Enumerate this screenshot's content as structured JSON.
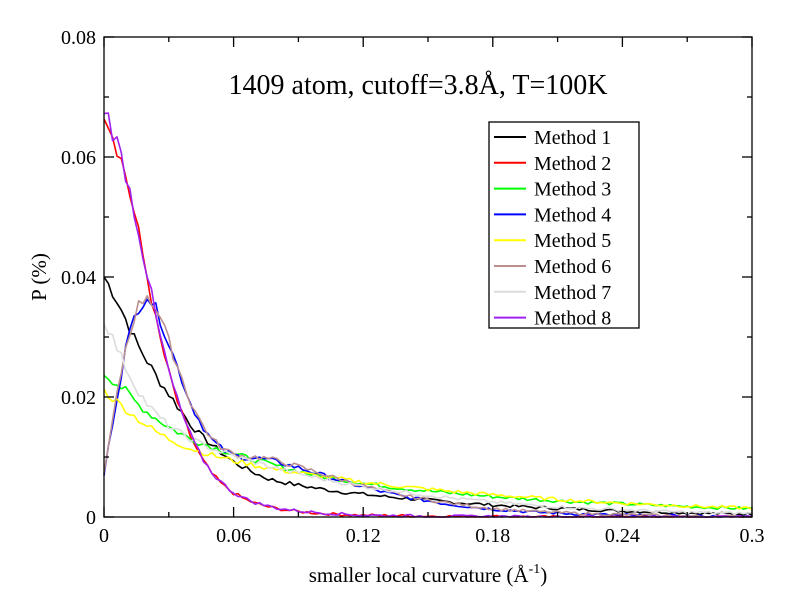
{
  "chart_data": {
    "type": "line",
    "title": "1409 atom, cutoff=3.8Å, T=100K",
    "xlabel": "smaller local curvature (Å",
    "xlabel_sup": "-1",
    "xlabel_suffix": ")",
    "ylabel": "P (%)",
    "xlim": [
      0,
      0.3
    ],
    "ylim": [
      0,
      0.08
    ],
    "xticks": [
      0,
      0.06,
      0.12,
      0.18,
      0.24,
      0.3
    ],
    "xtick_labels": [
      "0",
      "0.06",
      "0.12",
      "0.18",
      "0.24",
      "0.3"
    ],
    "yticks": [
      0,
      0.02,
      0.04,
      0.06,
      0.08
    ],
    "ytick_labels": [
      "0",
      "0.02",
      "0.04",
      "0.06",
      "0.08"
    ],
    "grid": false,
    "legend_position": "top-right",
    "series": [
      {
        "name": "Method 1",
        "color": "#000000",
        "x": [
          0,
          0.005,
          0.01,
          0.015,
          0.02,
          0.025,
          0.03,
          0.035,
          0.04,
          0.045,
          0.05,
          0.055,
          0.06,
          0.065,
          0.07,
          0.075,
          0.08,
          0.09,
          0.1,
          0.11,
          0.12,
          0.13,
          0.14,
          0.15,
          0.16,
          0.18,
          0.2,
          0.22,
          0.24,
          0.26,
          0.28,
          0.3
        ],
        "y": [
          0.04,
          0.037,
          0.033,
          0.029,
          0.026,
          0.023,
          0.0205,
          0.018,
          0.0155,
          0.0135,
          0.012,
          0.0105,
          0.0092,
          0.0082,
          0.0073,
          0.0065,
          0.006,
          0.0053,
          0.0047,
          0.0042,
          0.0038,
          0.0034,
          0.0031,
          0.0028,
          0.0025,
          0.002,
          0.0016,
          0.0013,
          0.001,
          0.0008,
          0.0006,
          0.0005
        ]
      },
      {
        "name": "Method 2",
        "color": "#ff0000",
        "x": [
          0,
          0.005,
          0.01,
          0.015,
          0.02,
          0.025,
          0.03,
          0.035,
          0.04,
          0.045,
          0.05,
          0.055,
          0.06,
          0.065,
          0.07,
          0.075,
          0.08,
          0.09,
          0.1,
          0.11,
          0.12,
          0.14,
          0.16,
          0.18,
          0.2,
          0.24,
          0.3
        ],
        "y": [
          0.068,
          0.063,
          0.057,
          0.049,
          0.04,
          0.031,
          0.024,
          0.018,
          0.0135,
          0.0098,
          0.0072,
          0.0053,
          0.004,
          0.003,
          0.0023,
          0.0018,
          0.0014,
          0.0009,
          0.0006,
          0.0004,
          0.0003,
          0.0002,
          0.0001,
          0.0001,
          0.0,
          0.0,
          0.0
        ]
      },
      {
        "name": "Method 3",
        "color": "#00ff00",
        "x": [
          0,
          0.005,
          0.01,
          0.015,
          0.02,
          0.025,
          0.03,
          0.035,
          0.04,
          0.05,
          0.06,
          0.07,
          0.08,
          0.1,
          0.12,
          0.14,
          0.16,
          0.18,
          0.2,
          0.22,
          0.24,
          0.26,
          0.28,
          0.3
        ],
        "y": [
          0.024,
          0.0225,
          0.021,
          0.019,
          0.0175,
          0.0162,
          0.015,
          0.014,
          0.013,
          0.0117,
          0.0105,
          0.0095,
          0.0085,
          0.0068,
          0.0056,
          0.0047,
          0.004,
          0.0034,
          0.0029,
          0.0025,
          0.0022,
          0.0019,
          0.0016,
          0.0014
        ]
      },
      {
        "name": "Method 4",
        "color": "#0000ff",
        "x": [
          0,
          0.005,
          0.01,
          0.015,
          0.02,
          0.025,
          0.03,
          0.035,
          0.04,
          0.045,
          0.05,
          0.055,
          0.06,
          0.065,
          0.07,
          0.075,
          0.08,
          0.09,
          0.1,
          0.11,
          0.12,
          0.13,
          0.14,
          0.16,
          0.18,
          0.2,
          0.22,
          0.24,
          0.26,
          0.28,
          0.3
        ],
        "y": [
          0.007,
          0.018,
          0.028,
          0.0345,
          0.037,
          0.034,
          0.029,
          0.024,
          0.019,
          0.0155,
          0.0128,
          0.0112,
          0.0103,
          0.0099,
          0.0098,
          0.0096,
          0.0092,
          0.0082,
          0.0071,
          0.006,
          0.005,
          0.0041,
          0.0033,
          0.0021,
          0.0013,
          0.0008,
          0.0005,
          0.0003,
          0.0002,
          0.0001,
          0.0001
        ]
      },
      {
        "name": "Method 5",
        "color": "#ffff00",
        "x": [
          0,
          0.005,
          0.01,
          0.015,
          0.02,
          0.025,
          0.03,
          0.035,
          0.04,
          0.05,
          0.06,
          0.07,
          0.08,
          0.1,
          0.12,
          0.14,
          0.16,
          0.18,
          0.2,
          0.22,
          0.24,
          0.26,
          0.28,
          0.3
        ],
        "y": [
          0.021,
          0.0195,
          0.018,
          0.0165,
          0.0152,
          0.014,
          0.013,
          0.0122,
          0.0114,
          0.0103,
          0.0094,
          0.0086,
          0.0079,
          0.0068,
          0.0058,
          0.005,
          0.0043,
          0.0037,
          0.0032,
          0.0027,
          0.0023,
          0.002,
          0.0017,
          0.0015
        ]
      },
      {
        "name": "Method 6",
        "color": "#bc8f8f",
        "x": [
          0,
          0.005,
          0.01,
          0.015,
          0.02,
          0.025,
          0.03,
          0.035,
          0.04,
          0.045,
          0.05,
          0.055,
          0.06,
          0.065,
          0.07,
          0.075,
          0.08,
          0.09,
          0.1,
          0.11,
          0.12,
          0.13,
          0.14,
          0.16,
          0.18,
          0.2,
          0.22,
          0.24,
          0.26,
          0.28,
          0.3
        ],
        "y": [
          0.007,
          0.0182,
          0.0282,
          0.0347,
          0.0372,
          0.0342,
          0.0292,
          0.0242,
          0.0192,
          0.0157,
          0.013,
          0.0114,
          0.0105,
          0.0101,
          0.01,
          0.0098,
          0.0094,
          0.0084,
          0.0073,
          0.0062,
          0.0052,
          0.0043,
          0.0035,
          0.0023,
          0.0014,
          0.0009,
          0.0006,
          0.0004,
          0.0002,
          0.0001,
          0.0001
        ]
      },
      {
        "name": "Method 7",
        "color": "#dcdcdc",
        "x": [
          0,
          0.005,
          0.01,
          0.015,
          0.02,
          0.025,
          0.03,
          0.035,
          0.04,
          0.045,
          0.05,
          0.06,
          0.07,
          0.08,
          0.1,
          0.12,
          0.14,
          0.16,
          0.18,
          0.2,
          0.22,
          0.24,
          0.26,
          0.28,
          0.3
        ],
        "y": [
          0.033,
          0.029,
          0.025,
          0.0215,
          0.0188,
          0.0168,
          0.0152,
          0.014,
          0.013,
          0.0122,
          0.0114,
          0.0102,
          0.0091,
          0.0081,
          0.0064,
          0.0051,
          0.0041,
          0.0032,
          0.0025,
          0.0019,
          0.0015,
          0.0012,
          0.0009,
          0.0007,
          0.0006
        ]
      },
      {
        "name": "Method 8",
        "color": "#a020f0",
        "x": [
          0,
          0.005,
          0.01,
          0.015,
          0.02,
          0.025,
          0.03,
          0.035,
          0.04,
          0.045,
          0.05,
          0.055,
          0.06,
          0.065,
          0.07,
          0.075,
          0.08,
          0.09,
          0.1,
          0.11,
          0.12,
          0.14,
          0.16,
          0.18,
          0.2,
          0.24,
          0.3
        ],
        "y": [
          0.0685,
          0.0635,
          0.0575,
          0.0495,
          0.0405,
          0.0315,
          0.0243,
          0.0183,
          0.0137,
          0.01,
          0.0074,
          0.0055,
          0.0041,
          0.0031,
          0.0024,
          0.0019,
          0.0015,
          0.001,
          0.0007,
          0.0005,
          0.0003,
          0.0002,
          0.0001,
          0.0001,
          0.0,
          0.0,
          0.0
        ]
      }
    ]
  }
}
